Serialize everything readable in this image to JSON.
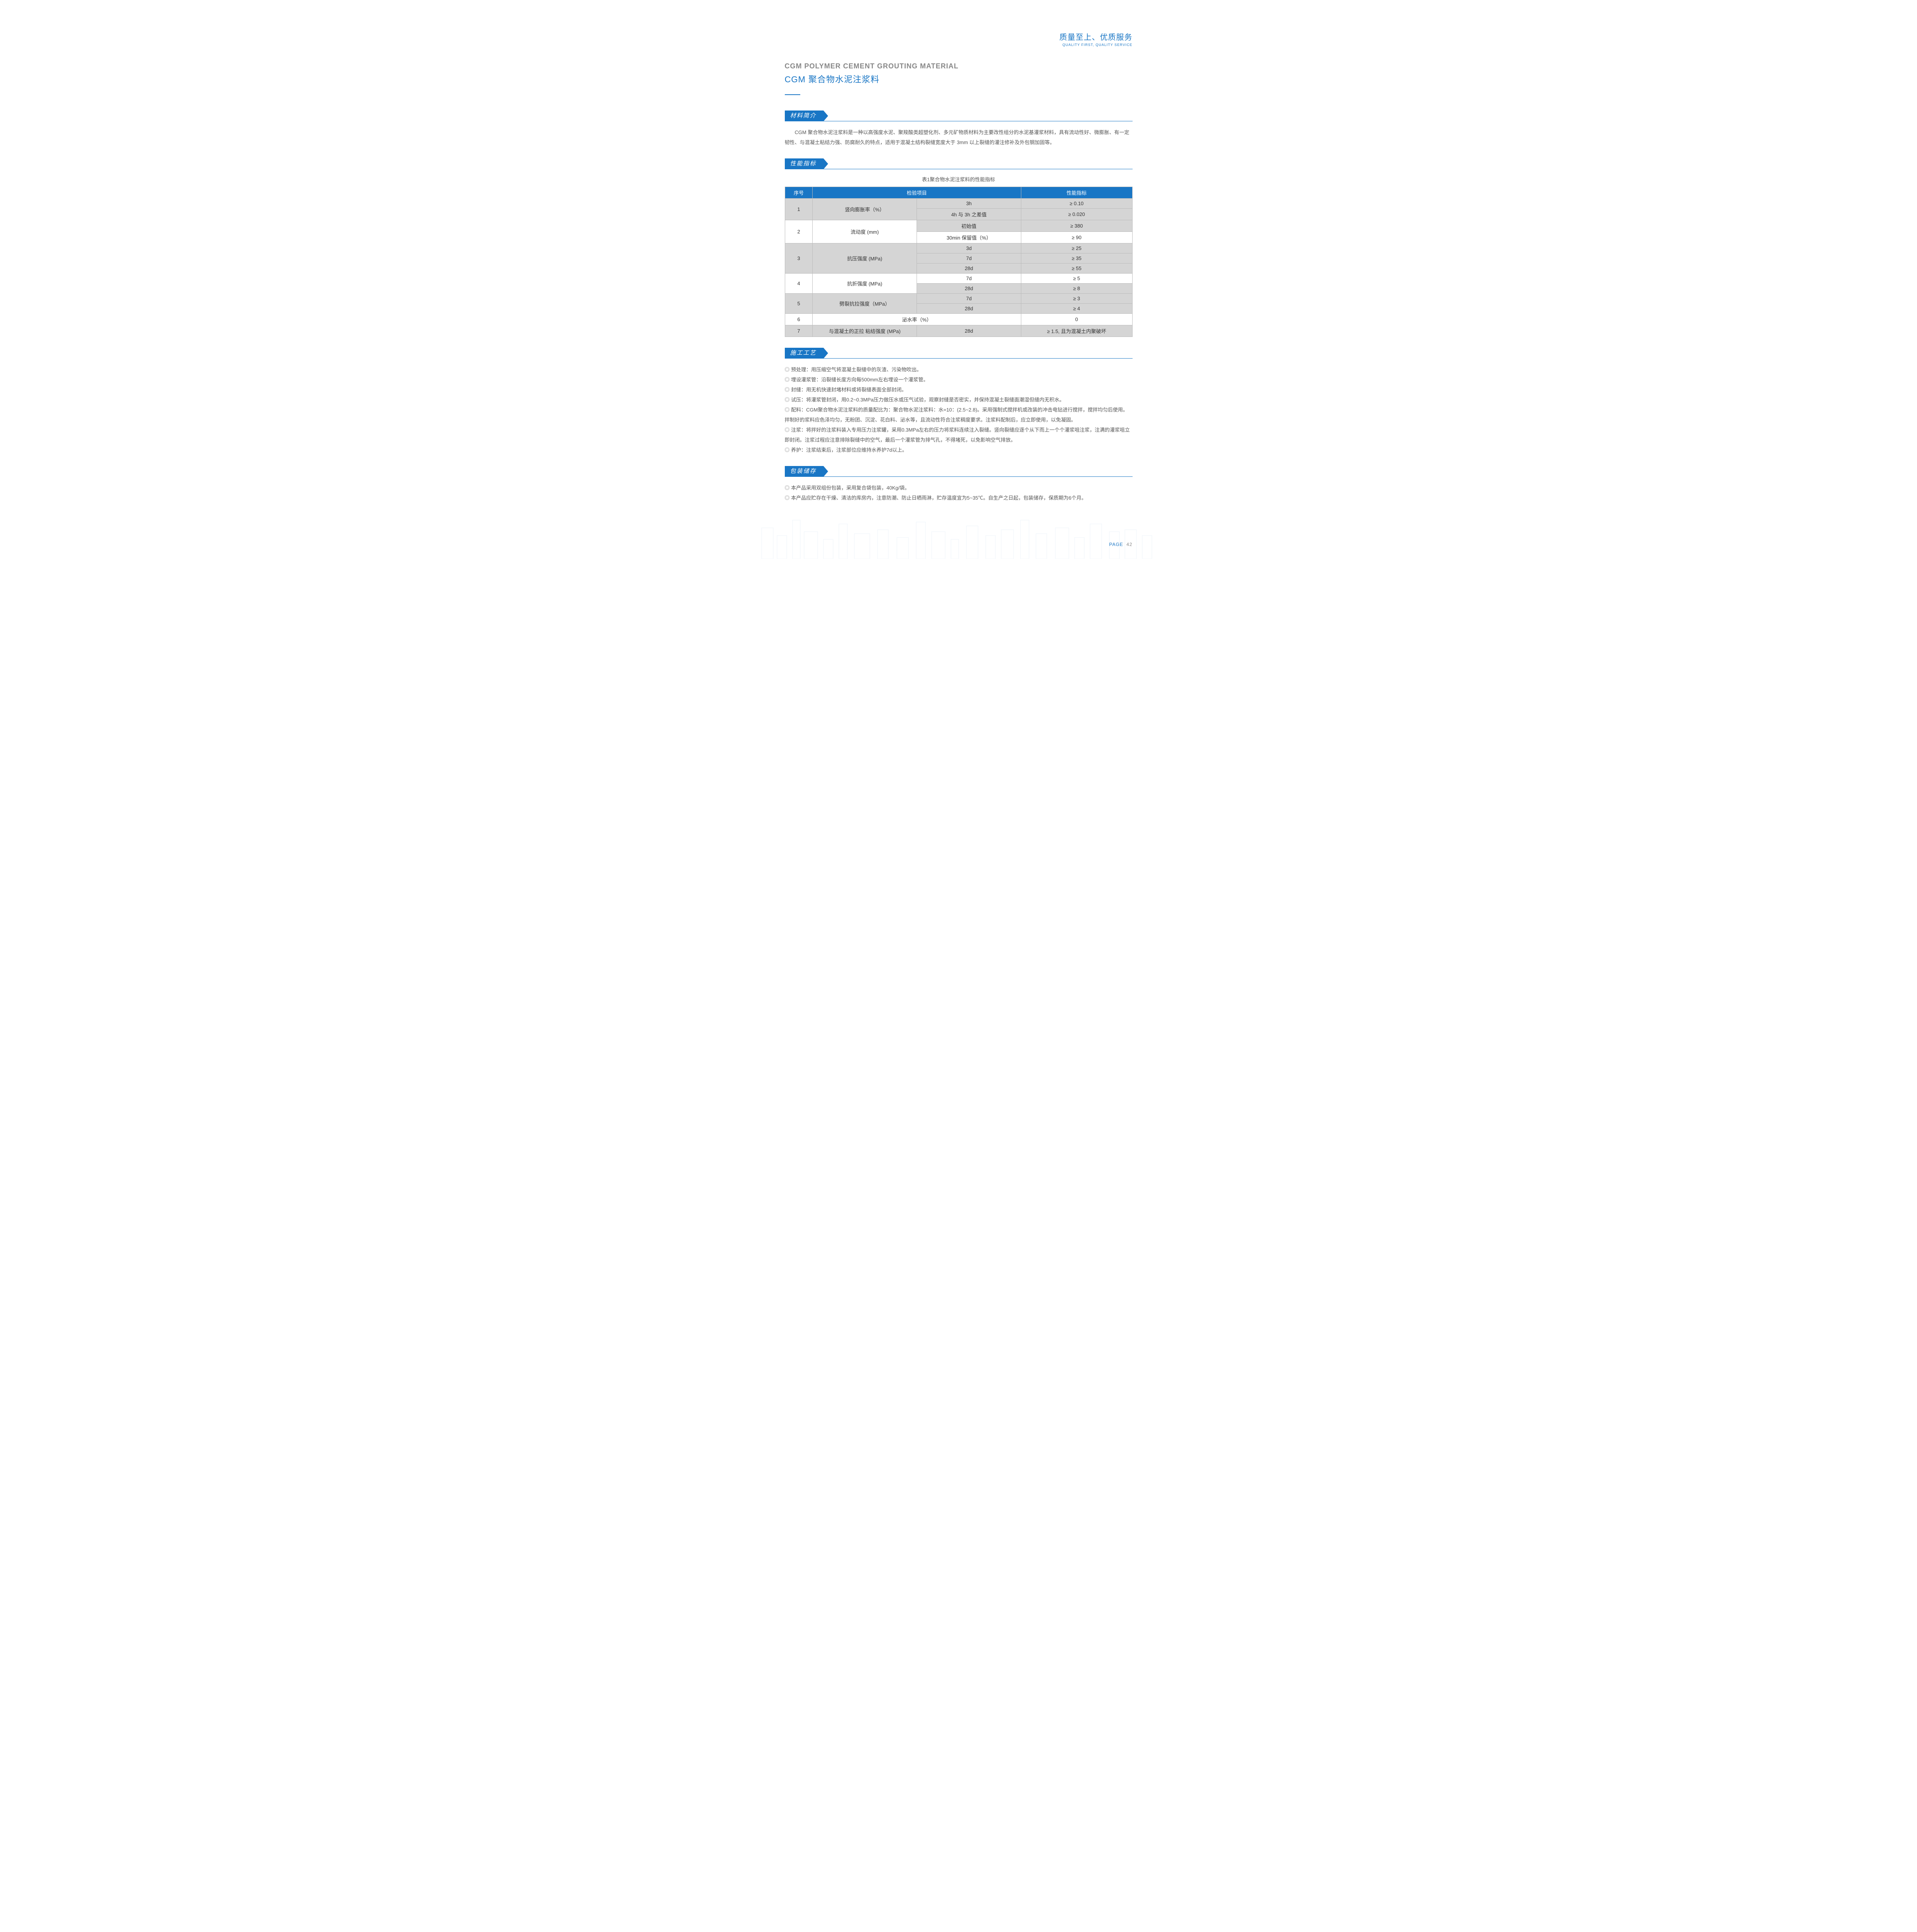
{
  "tagline": {
    "cn": "质量至上、优质服务",
    "en": "QUALITY FIRST, QUALITY SERVICE"
  },
  "title": {
    "en": "CGM POLYMER CEMENT GROUTING MATERIAL",
    "cn": "CGM 聚合物水泥注浆料"
  },
  "sections": {
    "intro": {
      "heading": "材料简介",
      "body": "CGM 聚合物水泥注浆料是一种以高强度水泥、聚羧酸类超塑化剂、多元矿物质材料为主要改性组分的水泥基灌浆材料，具有流动性好、微膨胀、有一定韧性、与混凝土粘结力强、防腐耐久的特点，适用于混凝土结构裂缝宽度大于 3mm 以上裂缝的灌注修补及外包钢加固等。"
    },
    "spec": {
      "heading": "性能指标",
      "caption": "表1聚合物水泥注浆料的性能指标",
      "columns": [
        "序号",
        "检验项目",
        "性能指标"
      ],
      "rows": [
        {
          "seq": "1",
          "item": "竖向膨胀率（%）",
          "sub": "3h",
          "value": "≥ 0.10",
          "shade": true,
          "rowspan": 2
        },
        {
          "seq": "",
          "item": "",
          "sub": "4h 与 3h 之差值",
          "value": "≥ 0.020",
          "shade": true
        },
        {
          "seq": "2",
          "item": "流动度 (mm)",
          "sub": "初始值",
          "value": "≥ 380",
          "shade": false,
          "rowspan": 2,
          "sub_shade": true
        },
        {
          "seq": "",
          "item": "",
          "sub": "30min 保留值（%）",
          "value": "≥ 90",
          "shade": false
        },
        {
          "seq": "3",
          "item": "抗压强度 (MPa)",
          "sub": "3d",
          "value": "≥ 25",
          "shade": true,
          "rowspan": 3
        },
        {
          "seq": "",
          "item": "",
          "sub": "7d",
          "value": "≥ 35",
          "shade": true
        },
        {
          "seq": "",
          "item": "",
          "sub": "28d",
          "value": "≥ 55",
          "shade": true
        },
        {
          "seq": "4",
          "item": "抗折强度 (MPa)",
          "sub": "7d",
          "value": "≥ 5",
          "shade": false,
          "rowspan": 2
        },
        {
          "seq": "",
          "item": "",
          "sub": "28d",
          "value": "≥ 8",
          "shade": false,
          "sub_shade": true
        },
        {
          "seq": "5",
          "item": "劈裂抗拉强度（MPa）",
          "sub": "7d",
          "value": "≥ 3",
          "shade": true,
          "rowspan": 2
        },
        {
          "seq": "",
          "item": "",
          "sub": "28d",
          "value": "≥ 4",
          "shade": true
        },
        {
          "seq": "6",
          "item": "泌水率（%）",
          "sub": "",
          "value": "0",
          "shade": false,
          "span_item": true
        },
        {
          "seq": "7",
          "item": "与混凝土的正拉 粘结强度 (MPa)",
          "sub": "28d",
          "value": "≥ 1.5, 且为混凝土内聚破坏",
          "shade": true
        }
      ]
    },
    "process": {
      "heading": "施工工艺",
      "items": [
        "预处理：用压缩空气将混凝土裂缝中的灰渣、污染物吹出。",
        "埋设灌浆管：沿裂缝长度方向每500mm左右埋设一个灌浆管。",
        "封缝：用无机快速封堵材料或将裂缝表面全部封闭。",
        "试压：将灌浆管封闭，用0.2~0.3MPa压力做压水或压气试验，观察封缝是否密实，并保持混凝土裂缝面潮湿但缝内无积水。",
        "配料：CGM聚合物水泥注浆料的质量配比为：聚合物水泥注浆料：水=10：(2.5~2.8)。采用强制式搅拌机或改装的冲击电钻进行搅拌，搅拌均匀后使用。拌制好的浆料应色泽均匀，无粉团、沉淀、花白料、泌水等，且流动性符合注浆稠度要求。注浆料配制后，应立即使用，以免凝固。",
        "注浆：将拌好的注浆料装入专用压力注浆罐，采用0.3MPa左右的压力将浆料连续注入裂缝。竖向裂缝应逐个从下而上一个个灌浆咀注浆，注满的灌浆咀立即封闭。注浆过程应注意排除裂缝中的空气，最后一个灌浆管为排气孔，不得堵死，以免影响空气排放。",
        "养护：注浆结束后，注浆部位应维持水养护7d以上。"
      ]
    },
    "storage": {
      "heading": "包装储存",
      "items": [
        "本产品采用双组份包装，采用复合袋包装，40Kg/袋。",
        "本产品应贮存在干燥、清洁的库房内，注意防潮、防止日晒雨淋，贮存温度宜为5~35℃。自生产之日起，包装储存，保质期为6个月。"
      ]
    }
  },
  "page": {
    "label": "PAGE",
    "number": "42"
  },
  "colors": {
    "brand": "#1976c5",
    "text": "#555555",
    "shade_bg": "#d5d5d5",
    "border": "#bbbbbb"
  }
}
